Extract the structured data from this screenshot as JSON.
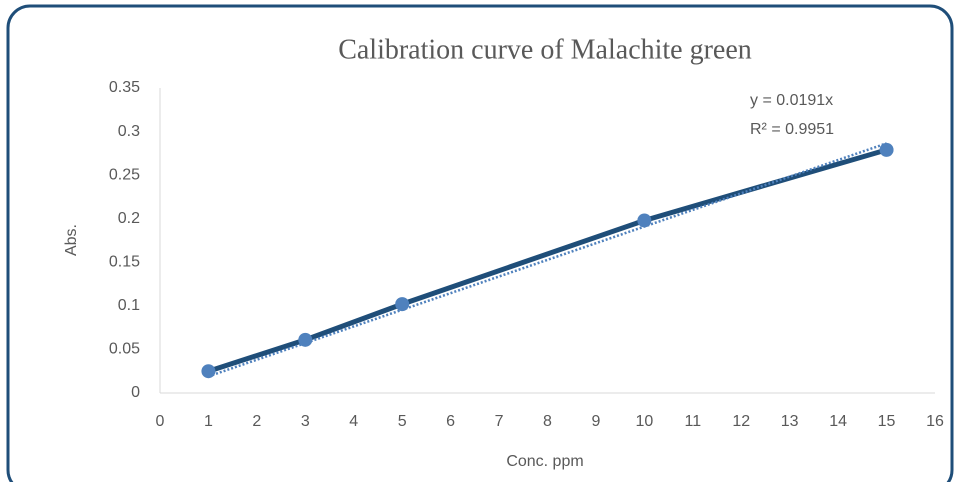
{
  "chart_data": {
    "type": "line",
    "title": "Calibration curve of Malachite green",
    "xlabel": "Conc. ppm",
    "ylabel": "Abs.",
    "x": [
      1,
      3,
      5,
      10,
      15
    ],
    "series": [
      {
        "color": "#1f4e79",
        "marker_color": "#4f81bd",
        "values": [
          0.025,
          0.061,
          0.102,
          0.198,
          0.279
        ]
      }
    ],
    "trendline": {
      "slope": 0.0191,
      "equation": "y = 0.0191x",
      "r2": "R² = 0.9951",
      "color": "#4f81bd"
    },
    "xlim": [
      0,
      16
    ],
    "xticks": [
      0,
      1,
      2,
      3,
      4,
      5,
      6,
      7,
      8,
      9,
      10,
      11,
      12,
      13,
      14,
      15,
      16
    ],
    "ylim": [
      0,
      0.35
    ],
    "yticks": [
      0,
      0.05,
      0.1,
      0.15,
      0.2,
      0.25,
      0.3,
      0.35
    ],
    "grid": false
  }
}
